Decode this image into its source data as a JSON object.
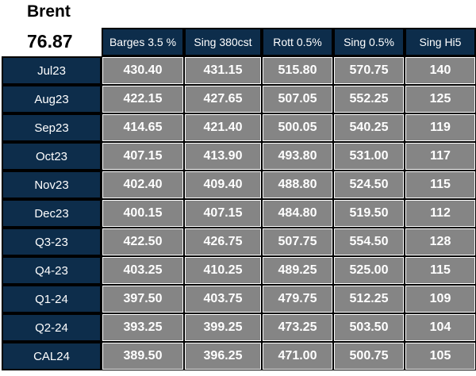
{
  "header": {
    "title": "Brent",
    "price": "76.87"
  },
  "table": {
    "columns": [
      "Barges 3.5 %",
      "Sing 380cst",
      "Rott 0.5%",
      "Sing 0.5%",
      "Sing Hi5"
    ],
    "rows": [
      [
        "Jul23",
        "430.40",
        "431.15",
        "515.80",
        "570.75",
        "140"
      ],
      [
        "Aug23",
        "422.15",
        "427.65",
        "507.05",
        "552.25",
        "125"
      ],
      [
        "Sep23",
        "414.65",
        "421.40",
        "500.05",
        "540.25",
        "119"
      ],
      [
        "Oct23",
        "407.15",
        "413.90",
        "493.80",
        "531.00",
        "117"
      ],
      [
        "Nov23",
        "402.40",
        "409.40",
        "488.80",
        "524.50",
        "115"
      ],
      [
        "Dec23",
        "400.15",
        "407.15",
        "484.80",
        "519.50",
        "112"
      ],
      [
        "Q3-23",
        "422.50",
        "426.75",
        "507.75",
        "554.50",
        "128"
      ],
      [
        "Q4-23",
        "403.25",
        "410.25",
        "489.25",
        "525.00",
        "115"
      ],
      [
        "Q1-24",
        "397.50",
        "403.75",
        "479.75",
        "512.25",
        "109"
      ],
      [
        "Q2-24",
        "393.25",
        "399.25",
        "473.25",
        "503.50",
        "104"
      ],
      [
        "CAL24",
        "389.50",
        "396.25",
        "471.00",
        "500.75",
        "105"
      ]
    ]
  }
}
